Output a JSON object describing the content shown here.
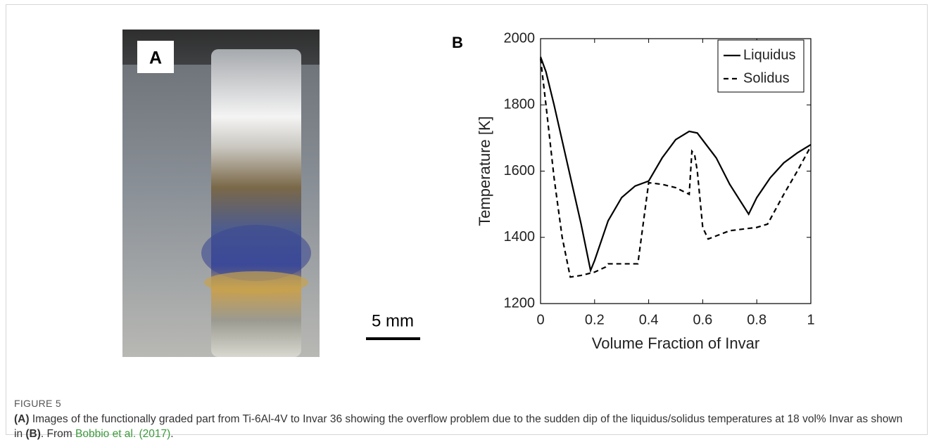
{
  "figure": {
    "panel_a": {
      "label": "A",
      "scale_bar": "5 mm"
    },
    "figure_label": "FIGURE 5",
    "caption": [
      {
        "text": "(A)",
        "bold": true
      },
      {
        "text": " Images of the functionally graded part from Ti-6Al-4V to Invar 36 showing the overflow problem due to the sudden dip of the liquidus/solidus temperatures at 18 vol% Invar as shown in "
      },
      {
        "text": "(B)",
        "bold": true
      },
      {
        "text": ". From "
      },
      {
        "text": "Bobbio et al. (2017)",
        "link": true
      },
      {
        "text": "."
      }
    ]
  },
  "chart_data": {
    "type": "line",
    "panel_label": "B",
    "x_label": "Volume Fraction of Invar",
    "y_label": "Temperature [K]",
    "xlim": [
      0,
      1
    ],
    "xticks": [
      0,
      0.2,
      0.4,
      0.6,
      0.8,
      1
    ],
    "ylim": [
      1200,
      2000
    ],
    "yticks": [
      1200,
      1400,
      1600,
      1800,
      2000
    ],
    "legend": "upper right",
    "series": [
      {
        "name": "Liquidus",
        "color": "#000000",
        "linestyle": "solid",
        "x": [
          0,
          0.02,
          0.05,
          0.1,
          0.15,
          0.185,
          0.2,
          0.25,
          0.3,
          0.35,
          0.4,
          0.45,
          0.5,
          0.55,
          0.58,
          0.65,
          0.7,
          0.77,
          0.8,
          0.85,
          0.9,
          0.95,
          1
        ],
        "values": [
          1945,
          1900,
          1800,
          1620,
          1440,
          1300,
          1330,
          1450,
          1520,
          1555,
          1570,
          1640,
          1695,
          1720,
          1715,
          1640,
          1560,
          1470,
          1520,
          1580,
          1625,
          1655,
          1680
        ]
      },
      {
        "name": "Solidus",
        "color": "#000000",
        "linestyle": "dashed",
        "x": [
          0,
          0.02,
          0.05,
          0.08,
          0.11,
          0.15,
          0.2,
          0.24,
          0.25,
          0.36,
          0.4,
          0.45,
          0.5,
          0.55,
          0.56,
          0.57,
          0.58,
          0.6,
          0.62,
          0.7,
          0.8,
          0.84,
          0.9,
          0.95,
          1
        ],
        "values": [
          1940,
          1800,
          1580,
          1400,
          1280,
          1285,
          1295,
          1310,
          1320,
          1320,
          1565,
          1560,
          1550,
          1530,
          1660,
          1650,
          1600,
          1430,
          1395,
          1420,
          1430,
          1440,
          1530,
          1600,
          1675
        ]
      }
    ]
  }
}
